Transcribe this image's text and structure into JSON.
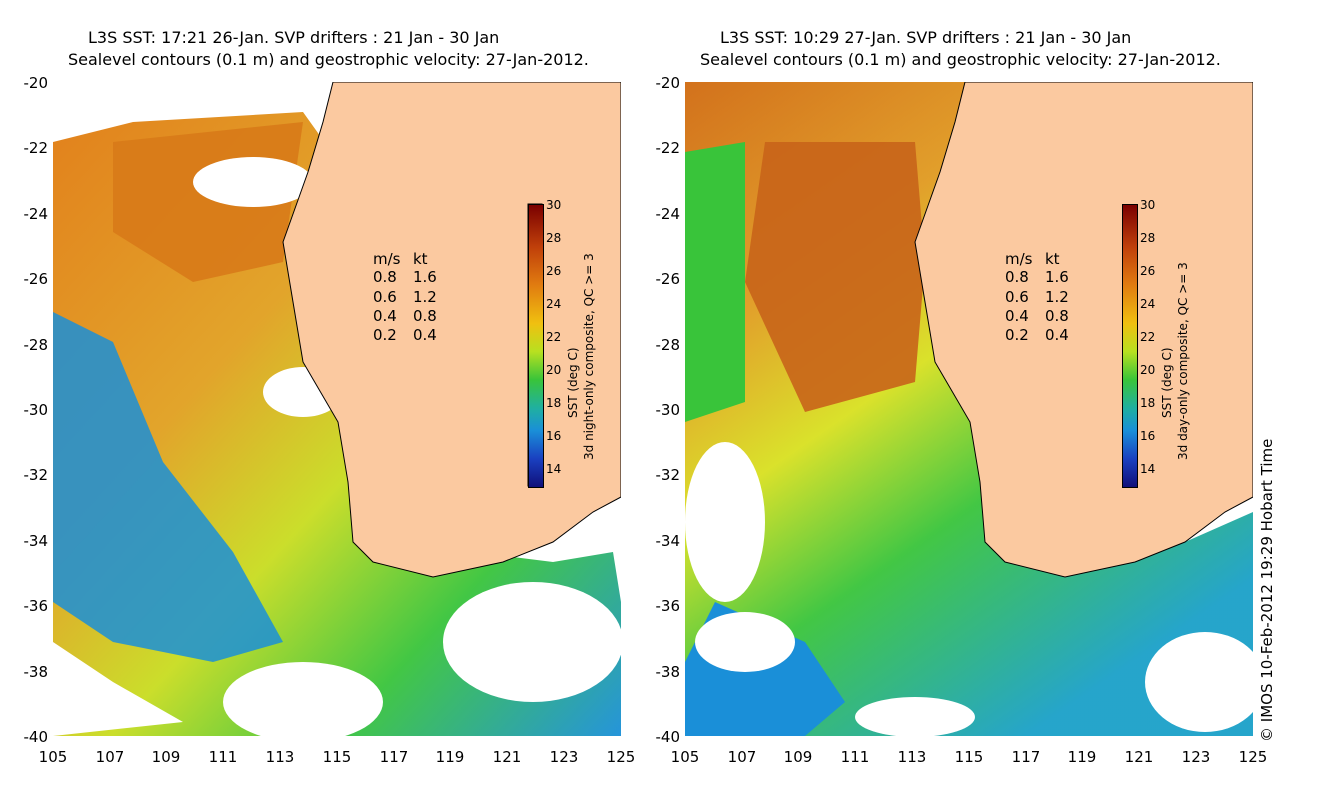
{
  "panels": [
    {
      "title_line1": "L3S SST: 17:21 26-Jan. SVP drifters : 21 Jan - 30 Jan",
      "title_line2": "Sealevel contours (0.1 m) and geostrophic velocity: 27-Jan-2012.",
      "colorbar_label_1": "SST (deg C)",
      "colorbar_label_2": "3d night-only composite, QC >= 3"
    },
    {
      "title_line1": "L3S SST: 10:29 27-Jan. SVP drifters : 21 Jan - 30 Jan",
      "title_line2": "Sealevel contours (0.1 m) and geostrophic velocity: 27-Jan-2012.",
      "colorbar_label_1": "SST (deg C)",
      "colorbar_label_2": "3d day-only composite, QC >= 3"
    }
  ],
  "y_ticks": [
    "-20",
    "-22",
    "-24",
    "-26",
    "-28",
    "-30",
    "-32",
    "-34",
    "-36",
    "-38",
    "-40"
  ],
  "x_ticks": [
    "105",
    "107",
    "109",
    "111",
    "113",
    "115",
    "117",
    "119",
    "121",
    "123",
    "125"
  ],
  "colorbar_ticks": [
    "30",
    "28",
    "26",
    "24",
    "22",
    "20",
    "18",
    "16",
    "14"
  ],
  "velocity_legend": {
    "header_ms": "m/s",
    "header_kt": "kt",
    "rows": [
      {
        "ms": "0.8",
        "kt": "1.6"
      },
      {
        "ms": "0.6",
        "kt": "1.2"
      },
      {
        "ms": "0.4",
        "kt": "0.8"
      },
      {
        "ms": "0.2",
        "kt": "0.4"
      }
    ]
  },
  "credit": "© IMOS 10-Feb-2012 19:29 Hobart Time",
  "colors": {
    "land": "#fbc9a0",
    "sst_30": "#7a0000",
    "sst_26": "#e07a10",
    "sst_22": "#39c43a",
    "sst_18": "#1a8fd8",
    "sst_14": "#10107a"
  }
}
